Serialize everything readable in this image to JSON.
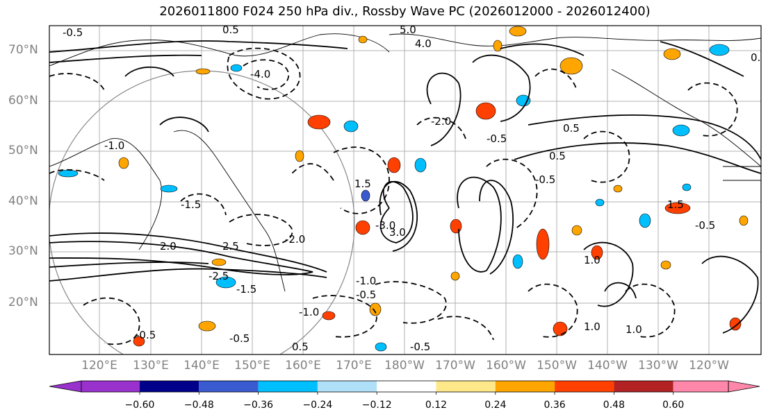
{
  "title": "2026011800 F024 250 hPa div., Rossby Wave PC (2026012000 - 2026012400)",
  "lat_labels": [
    "70°N",
    "60°N",
    "50°N",
    "40°N",
    "30°N",
    "20°N"
  ],
  "lon_labels": [
    "120°E",
    "130°E",
    "140°E",
    "150°E",
    "160°E",
    "170°E",
    "180°W",
    "170°W",
    "160°W",
    "150°W",
    "140°W",
    "130°W",
    "120°W"
  ],
  "colorbar": {
    "tick_labels": [
      "−0.60",
      "−0.48",
      "−0.36",
      "−0.24",
      "−0.12",
      "0.12",
      "0.24",
      "0.36",
      "0.48",
      "0.60"
    ],
    "colors": [
      "#9932cc",
      "#00008b",
      "#3a5bd0",
      "#00bfff",
      "#b0e0f8",
      "#ffffff",
      "#ffe88a",
      "#ffa500",
      "#ff4000",
      "#b22222",
      "#ff88aa"
    ]
  },
  "contour_labels": [
    "-0.5",
    "0.5",
    "-4.0",
    "-2.0",
    "-1.0",
    "-1.5",
    "5.0",
    "4.0",
    "-3.0",
    "3.0",
    "2.0",
    "-0.5",
    "0.5",
    "1.0",
    "1.5",
    "-1.0",
    "-0.5",
    "0.5",
    "-2.5",
    "2.5",
    "-1.5",
    "1.5",
    "-0.5",
    "-1.0",
    "1.0",
    "-0.5",
    "0.5",
    "-0.5",
    "-2.0",
    "-0.5",
    "1.0",
    "-0.5",
    "0.5"
  ]
}
